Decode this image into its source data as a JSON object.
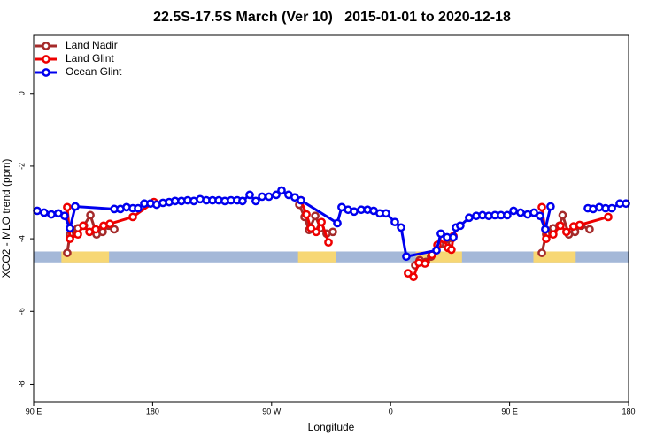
{
  "chart_data": {
    "type": "line",
    "title": "22.5S-17.5S March (Ver 10)   2015-01-01 to 2020-12-18",
    "x_label": "Longitude",
    "y_label": "XCO2 - MLO trend (ppm)",
    "xlim": [
      90,
      540
    ],
    "ylim": [
      -8.5,
      1.6
    ],
    "xticks": [
      {
        "value": 90,
        "label": "90 E"
      },
      180,
      {
        "value": 270,
        "label": "90 W"
      },
      {
        "value": 360,
        "label": "0"
      },
      {
        "value": 450,
        "label": "90 E"
      },
      {
        "value": 540,
        "label": "180"
      }
    ],
    "yticks": [
      0,
      -2,
      -4,
      -6,
      -8
    ],
    "legend": "top-left",
    "surface_band": {
      "y": [
        -4.65,
        -4.35
      ],
      "ocean_color": "#a4b8d8",
      "land_color": "#f7d774",
      "land": [
        [
          111,
          147
        ],
        [
          290,
          319
        ],
        [
          379,
          414
        ],
        [
          468,
          500
        ]
      ]
    },
    "series": [
      {
        "name": "Land Nadir",
        "color": "#a52a2a",
        "x": [
          115.4,
          117.5,
          123.5,
          128,
          132.9,
          137.6,
          142.2,
          146.9,
          151,
          null,
          290.9,
          294.9,
          298.3,
          303,
          307,
          311.6,
          316.3,
          null,
          378.6,
          382,
          386.7,
          390.6,
          397.4,
          402,
          406.7,
          null,
          474.4,
          477.7,
          483,
          487.7,
          490.1,
          494.8,
          499.5,
          504.2,
          510.5
        ],
        "values": [
          -4.39,
          -3.88,
          -3.71,
          -3.64,
          -3.35,
          -3.88,
          -3.81,
          -3.64,
          -3.74,
          null,
          -3.06,
          -3.4,
          -3.76,
          -3.37,
          -3.71,
          -3.86,
          -3.81,
          null,
          -4.73,
          -4.59,
          -4.64,
          -4.49,
          -4.15,
          -4.17,
          -3.98,
          null,
          -4.39,
          -3.88,
          -3.71,
          -3.64,
          -3.35,
          -3.88,
          -3.81,
          -3.64,
          -3.74
        ]
      },
      {
        "name": "Land Glint",
        "color": "#ee0000",
        "x": [
          115.4,
          117.5,
          123.5,
          127.5,
          132.2,
          136.9,
          142.9,
          147.6,
          165,
          181,
          null,
          292.2,
          296.3,
          299.7,
          303.7,
          307.7,
          313,
          null,
          373.2,
          377.3,
          381.3,
          386,
          391.3,
          395.4,
          400,
          403.4,
          406,
          407.5,
          null,
          474.4,
          477.7,
          483,
          488.4,
          493,
          498.4,
          503,
          524.6
        ],
        "values": [
          -3.13,
          -4.0,
          -3.88,
          -3.64,
          -3.81,
          -3.74,
          -3.64,
          -3.59,
          -3.4,
          -2.99,
          null,
          -2.94,
          -3.33,
          -3.71,
          -3.81,
          -3.54,
          -4.1,
          null,
          -4.95,
          -5.05,
          -4.66,
          -4.68,
          -4.44,
          -4.17,
          -4.0,
          -4.25,
          -4.3,
          -3.93,
          null,
          -3.13,
          -4.0,
          -3.88,
          -3.64,
          -3.81,
          -3.66,
          -3.62,
          -3.4
        ]
      },
      {
        "name": "Ocean Glint",
        "color": "#0000ee",
        "x": [
          92.7,
          98,
          103.4,
          108.7,
          113.4,
          117.5,
          121.5,
          151,
          155.6,
          160.3,
          165,
          169,
          173.7,
          178.4,
          183,
          187.8,
          192.5,
          197,
          201.8,
          206.5,
          211.2,
          215.9,
          220.6,
          225.3,
          230,
          234.6,
          239.3,
          244,
          248,
          253.4,
          258,
          262.8,
          268,
          273.5,
          277.5,
          282.8,
          287.5,
          292.2,
          319.7,
          323,
          327.8,
          332.4,
          337.8,
          342.5,
          347.2,
          351.8,
          356.5,
          363.2,
          367.9,
          371.9,
          394.7,
          398,
          402.7,
          407.4,
          409.4,
          412.7,
          419.4,
          424.8,
          429.5,
          434.2,
          438.9,
          443.5,
          448.2,
          453,
          458.3,
          463.6,
          468.4,
          473,
          477,
          481,
          null,
          509.2,
          513.2,
          517.9,
          522.6,
          527.3,
          533.3,
          538
        ],
        "values": [
          -3.23,
          -3.28,
          -3.33,
          -3.3,
          -3.37,
          -3.71,
          -3.11,
          -3.18,
          -3.18,
          -3.13,
          -3.16,
          -3.16,
          -3.03,
          -3.03,
          -3.06,
          -3.01,
          -2.99,
          -2.96,
          -2.96,
          -2.94,
          -2.96,
          -2.91,
          -2.94,
          -2.94,
          -2.94,
          -2.96,
          -2.94,
          -2.94,
          -2.96,
          -2.79,
          -2.96,
          -2.84,
          -2.84,
          -2.79,
          -2.67,
          -2.79,
          -2.86,
          -2.94,
          -3.57,
          -3.13,
          -3.2,
          -3.25,
          -3.2,
          -3.2,
          -3.23,
          -3.3,
          -3.3,
          -3.54,
          -3.69,
          -4.49,
          -4.32,
          -3.86,
          -3.96,
          -3.96,
          -3.69,
          -3.64,
          -3.42,
          -3.37,
          -3.35,
          -3.37,
          -3.35,
          -3.35,
          -3.35,
          -3.23,
          -3.28,
          -3.33,
          -3.28,
          -3.37,
          -3.74,
          -3.11,
          null,
          -3.16,
          -3.18,
          -3.13,
          -3.16,
          -3.16,
          -3.03,
          -3.03
        ]
      }
    ]
  }
}
